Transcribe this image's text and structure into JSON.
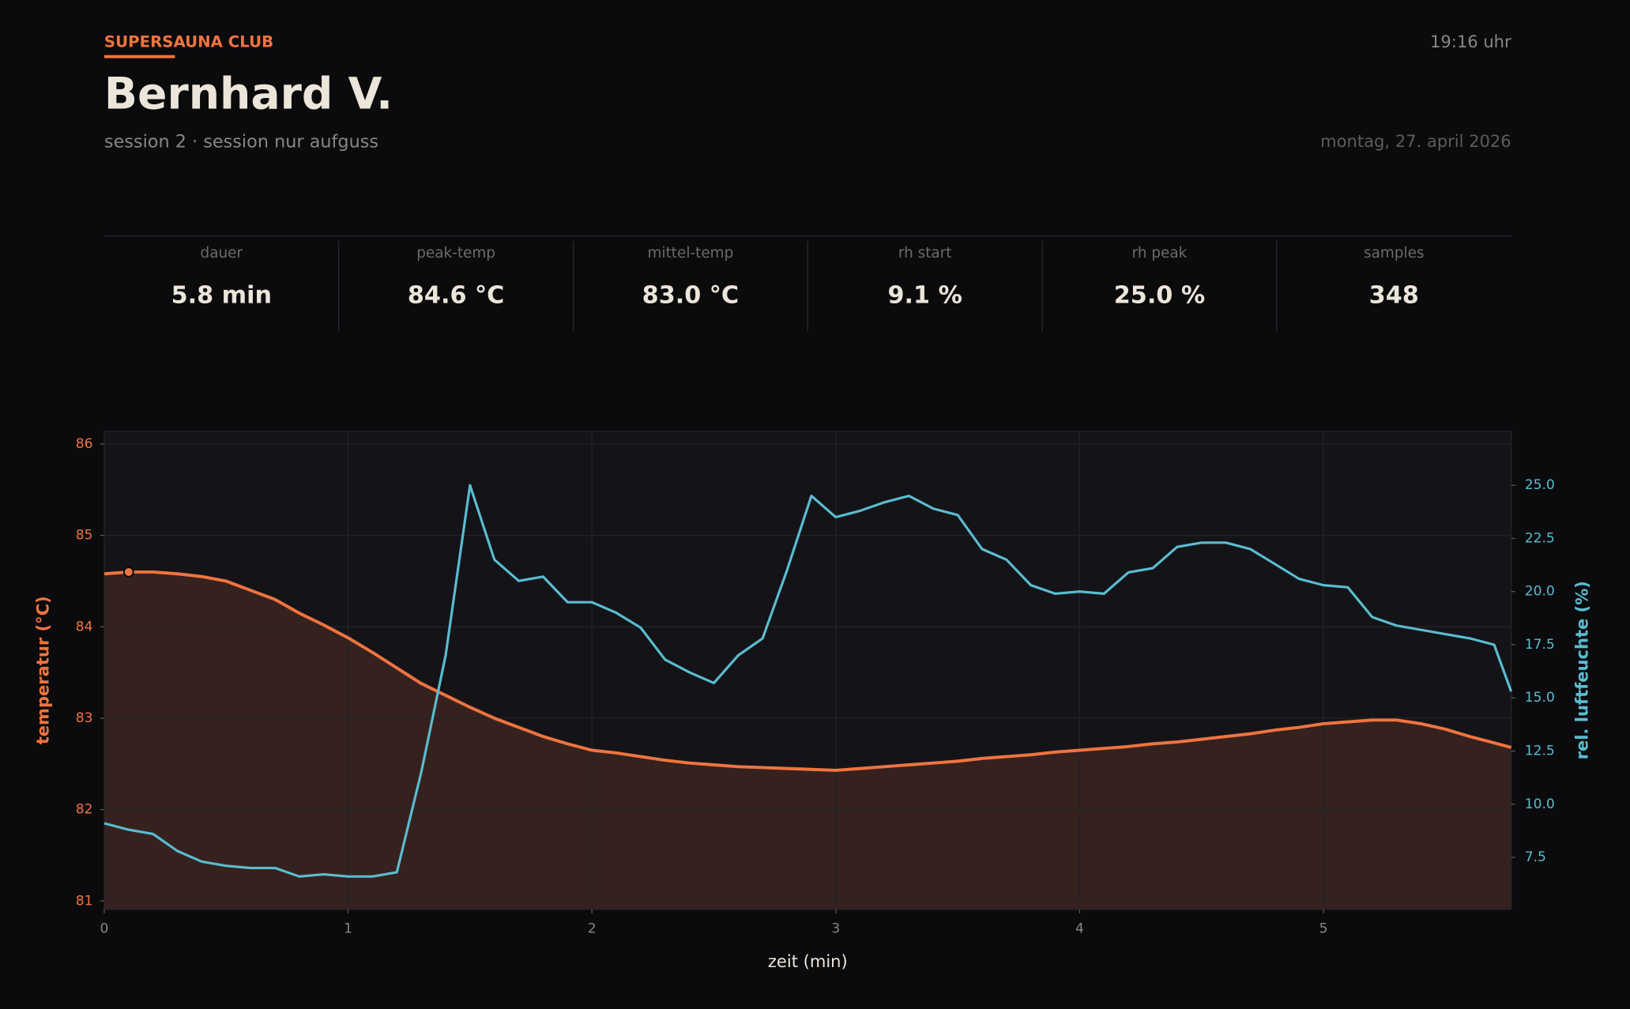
{
  "header": {
    "brand": "SUPERSAUNA  CLUB",
    "time": "19:16  uhr",
    "name": "Bernhard V.",
    "session": "session 2  ·  session nur aufguss",
    "date": "montag, 27. april 2026"
  },
  "stats": [
    {
      "label": "dauer",
      "value": "5.8 min"
    },
    {
      "label": "peak-temp",
      "value": "84.6 °C"
    },
    {
      "label": "mittel-temp",
      "value": "83.0 °C"
    },
    {
      "label": "rh start",
      "value": "9.1 %"
    },
    {
      "label": "rh peak",
      "value": "25.0 %"
    },
    {
      "label": "samples",
      "value": "348"
    }
  ],
  "chart_data": {
    "type": "line",
    "x_label": "zeit  (min)",
    "y_label": "temperatur  (°C)",
    "y2_label": "rel. luftfeuchte  (%)",
    "x": [
      0,
      0.1,
      0.2,
      0.3,
      0.4,
      0.5,
      0.6,
      0.7,
      0.8,
      0.9,
      1.0,
      1.1,
      1.2,
      1.3,
      1.4,
      1.5,
      1.6,
      1.7,
      1.8,
      1.9,
      2.0,
      2.1,
      2.2,
      2.3,
      2.4,
      2.5,
      2.6,
      2.7,
      2.8,
      2.9,
      3.0,
      3.1,
      3.2,
      3.3,
      3.4,
      3.5,
      3.6,
      3.7,
      3.8,
      3.9,
      4.0,
      4.1,
      4.2,
      4.3,
      4.4,
      4.5,
      4.6,
      4.7,
      4.8,
      4.9,
      5.0,
      5.1,
      5.2,
      5.3,
      5.4,
      5.5,
      5.6,
      5.7,
      5.77
    ],
    "series": [
      {
        "name": "temperatur",
        "color": "#f07440",
        "fill": "#35221f",
        "values": [
          84.58,
          84.6,
          84.6,
          84.58,
          84.55,
          84.5,
          84.4,
          84.3,
          84.15,
          84.02,
          83.88,
          83.72,
          83.55,
          83.38,
          83.25,
          83.12,
          83.0,
          82.9,
          82.8,
          82.72,
          82.65,
          82.62,
          82.58,
          82.54,
          82.51,
          82.49,
          82.47,
          82.46,
          82.45,
          82.44,
          82.43,
          82.45,
          82.47,
          82.49,
          82.51,
          82.53,
          82.56,
          82.58,
          82.6,
          82.63,
          82.65,
          82.67,
          82.69,
          82.72,
          82.74,
          82.77,
          82.8,
          82.83,
          82.87,
          82.9,
          82.94,
          82.96,
          82.98,
          82.98,
          82.94,
          82.88,
          82.8,
          82.73,
          82.68
        ]
      },
      {
        "name": "rel. luftfeuchte",
        "color": "#5bbcd0",
        "axis": "y2",
        "values": [
          9.1,
          8.8,
          8.6,
          7.8,
          7.3,
          7.1,
          7.0,
          7.0,
          6.6,
          6.7,
          6.6,
          6.6,
          6.8,
          11.5,
          17.0,
          25.0,
          21.5,
          20.5,
          20.7,
          19.5,
          19.5,
          19.0,
          18.3,
          16.8,
          16.2,
          15.7,
          17.0,
          17.8,
          21.0,
          24.5,
          23.5,
          23.8,
          24.2,
          24.5,
          23.9,
          23.6,
          22.0,
          21.5,
          20.3,
          19.9,
          20.0,
          19.9,
          20.9,
          21.1,
          22.1,
          22.3,
          22.3,
          22.0,
          21.3,
          20.6,
          20.3,
          20.2,
          18.8,
          18.4,
          18.2,
          18.0,
          17.8,
          17.5,
          15.3
        ]
      }
    ],
    "xlim": [
      0,
      5.77
    ],
    "xticks": [
      0,
      1,
      2,
      3,
      4,
      5
    ],
    "ylim": [
      80.91,
      86.14
    ],
    "yticks": [
      81,
      82,
      83,
      84,
      85,
      86
    ],
    "y2lim": [
      5.06,
      27.54
    ],
    "y2ticks": [
      {
        "value": 7.5,
        "label": "7.5"
      },
      {
        "value": 10,
        "label": "10.0"
      },
      {
        "value": 12.5,
        "label": "12.5"
      },
      {
        "value": 15,
        "label": "15.0"
      },
      {
        "value": 17.5,
        "label": "17.5"
      },
      {
        "value": 20,
        "label": "20.0"
      },
      {
        "value": 22.5,
        "label": "22.5"
      },
      {
        "value": 25,
        "label": "25.0"
      }
    ],
    "grid": true
  }
}
